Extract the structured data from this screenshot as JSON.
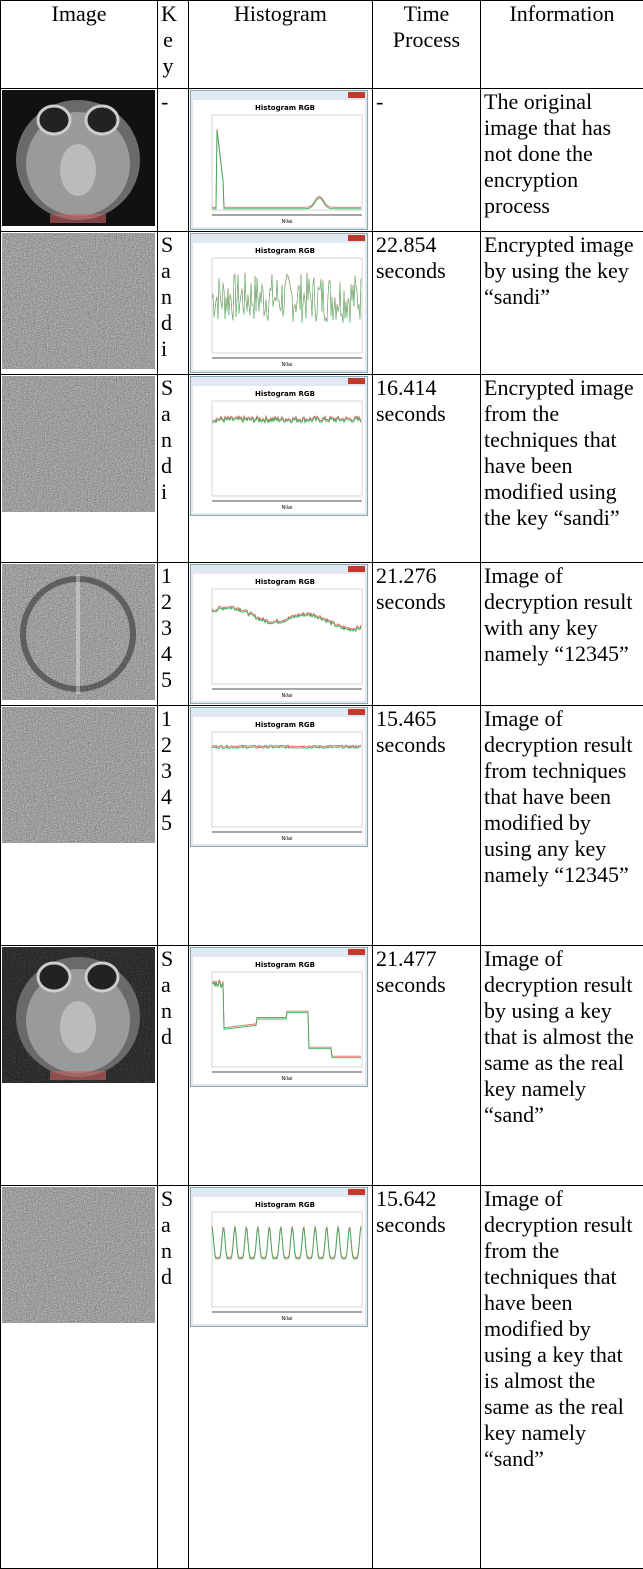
{
  "table": {
    "header": [
      "Image",
      "Key",
      "Histogram",
      "Time Process",
      "Information"
    ],
    "rows": [
      {
        "key": "-",
        "histogram": {
          "title": "Histogram RGB",
          "x_label": "Nilai"
        },
        "time": "-",
        "info": "The original image that has not done the encryption process"
      },
      {
        "key": "Sandi",
        "histogram": {
          "title": "Histogram RGB",
          "x_label": "Nilai"
        },
        "time": "22.854 seconds",
        "info": "Encrypted image by using the key “sandi”"
      },
      {
        "key": "Sandi",
        "histogram": {
          "title": "Histogram RGB",
          "x_label": "Nilai"
        },
        "time": "16.414 seconds",
        "info": "Encrypted image from the techniques that have been modified using the key “sandi”"
      },
      {
        "key": "12345",
        "histogram": {
          "title": "Histogram RGB",
          "x_label": "Nilai"
        },
        "time": "21.276 seconds",
        "info": "Image of decryption result with any key namely “12345”"
      },
      {
        "key": "12345",
        "histogram": {
          "title": "Histogram RGB",
          "x_label": "Nilai"
        },
        "time": "15.465 seconds",
        "info": "Image of decryption result from techniques that have been modified by using any key namely “12345”"
      },
      {
        "key": "Sand",
        "histogram": {
          "title": "Histogram RGB",
          "x_label": "Nilai"
        },
        "time": "21.477 seconds",
        "info": "Image of decryption result by using a key that is almost the same as the real key namely “sand”"
      },
      {
        "key": "Sand",
        "histogram": {
          "title": "Histogram RGB",
          "x_label": "Nilai"
        },
        "time": "15.642 seconds",
        "info": "Image of decryption result from the techniques that have been modified by using a key that is almost the same as the real key namely “sand”"
      }
    ]
  }
}
